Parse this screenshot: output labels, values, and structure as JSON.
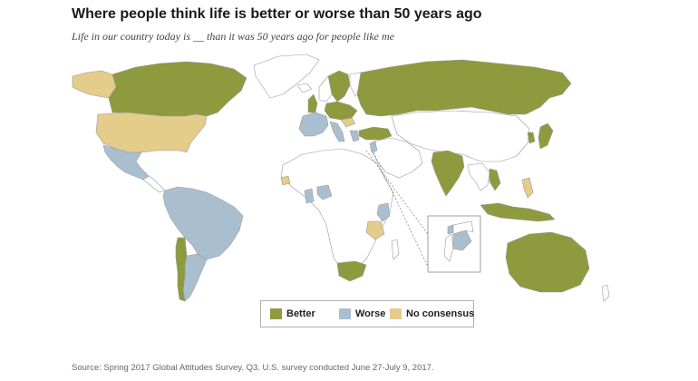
{
  "title": "Where people think life is better or worse than 50 years ago",
  "subtitle": "Life in our country today is __ than it was 50 years ago for people like me",
  "source": "Source: Spring 2017 Global Attitudes Survey. Q3. U.S. survey conducted June 27-July 9, 2017.",
  "colors": {
    "better": "#8e9a3e",
    "worse": "#a9bfd0",
    "no_consensus": "#e4cc8a",
    "not_surveyed": "#ffffff",
    "border": "#9a9a9a"
  },
  "legend": [
    {
      "key": "better",
      "label": "Better"
    },
    {
      "key": "worse",
      "label": "Worse"
    },
    {
      "key": "no_consensus",
      "label": "No consensus"
    }
  ],
  "categories": {
    "better": [
      "Canada",
      "Netherlands",
      "Sweden",
      "Germany",
      "Poland",
      "Russia",
      "Turkey",
      "India",
      "Vietnam",
      "South Korea",
      "Japan",
      "Indonesia",
      "Australia",
      "South Africa",
      "Chile"
    ],
    "worse": [
      "Mexico",
      "Brazil",
      "Colombia",
      "Venezuela",
      "Peru",
      "Argentina",
      "France",
      "Spain",
      "Italy",
      "Greece",
      "Lebanon",
      "Jordan",
      "Nigeria",
      "Ghana",
      "Kenya"
    ],
    "no_consensus": [
      "United States",
      "Hungary",
      "Senegal",
      "Tanzania",
      "Philippines"
    ]
  }
}
